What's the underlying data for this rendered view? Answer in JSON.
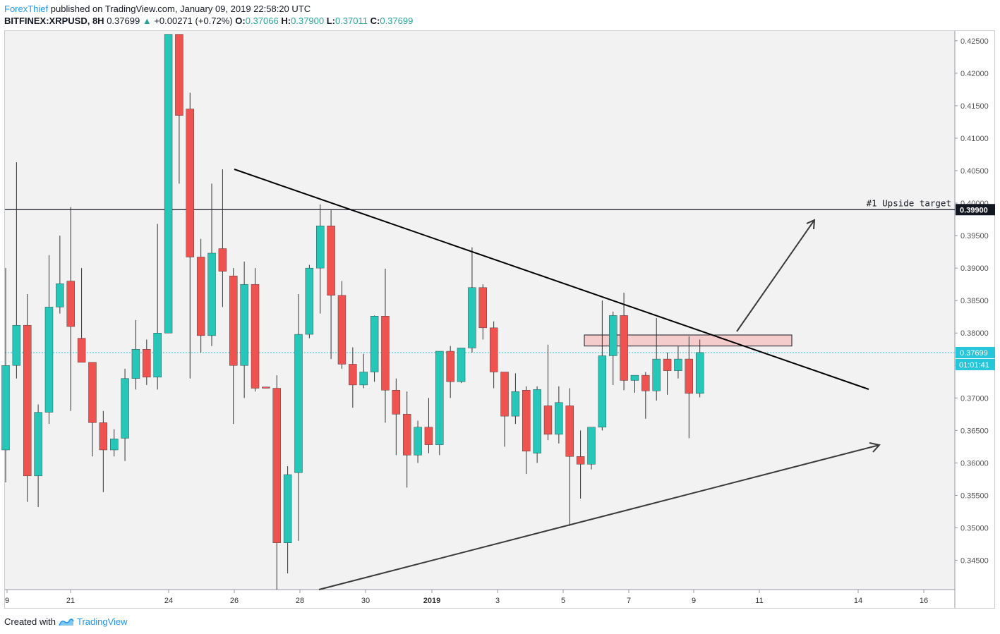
{
  "header": {
    "author": "ForexThief",
    "published": "published on TradingView.com, January 09, 2019 22:58:20 UTC",
    "symbol": "BITFINEX:XRPUSD, 8H",
    "last": "0.37699",
    "change": "+0.00271 (+0.72%)",
    "open_label": "O:",
    "open": "0.37066",
    "high_label": "H:",
    "high": "0.37900",
    "low_label": "L:",
    "low": "0.37011",
    "close_label": "C:",
    "close": "0.37699"
  },
  "footer": {
    "created_with": "Created with",
    "brand": "TradingView"
  },
  "colors": {
    "up": "#26c6b9",
    "down": "#ef5350",
    "grid_bg": "#f2f2f2",
    "accent": "#2196f3"
  },
  "chart_data": {
    "type": "candlestick",
    "timeframe": "8H",
    "ylim": [
      0.3405,
      0.4265
    ],
    "y_ticks": [
      "0.42500",
      "0.42000",
      "0.41500",
      "0.41000",
      "0.40500",
      "0.40000",
      "0.39500",
      "0.39000",
      "0.38500",
      "0.38000",
      "0.37500",
      "0.37000",
      "0.36500",
      "0.36000",
      "0.35500",
      "0.35000",
      "0.34500"
    ],
    "x_ticks": [
      "9",
      "21",
      "24",
      "26",
      "28",
      "30",
      "2019",
      "3",
      "5",
      "7",
      "9",
      "11",
      "14",
      "16"
    ],
    "candles": [
      {
        "o": 0.362,
        "h": 0.39,
        "l": 0.357,
        "c": 0.375
      },
      {
        "o": 0.375,
        "h": 0.4063,
        "l": 0.373,
        "c": 0.3812
      },
      {
        "o": 0.3812,
        "h": 0.386,
        "l": 0.354,
        "c": 0.358
      },
      {
        "o": 0.358,
        "h": 0.369,
        "l": 0.3532,
        "c": 0.3678
      },
      {
        "o": 0.3678,
        "h": 0.392,
        "l": 0.366,
        "c": 0.384
      },
      {
        "o": 0.384,
        "h": 0.395,
        "l": 0.383,
        "c": 0.3876
      },
      {
        "o": 0.388,
        "h": 0.3994,
        "l": 0.368,
        "c": 0.381
      },
      {
        "o": 0.3792,
        "h": 0.39,
        "l": 0.3755,
        "c": 0.3755
      },
      {
        "o": 0.3755,
        "h": 0.375,
        "l": 0.361,
        "c": 0.3662
      },
      {
        "o": 0.3662,
        "h": 0.368,
        "l": 0.3555,
        "c": 0.362
      },
      {
        "o": 0.362,
        "h": 0.3652,
        "l": 0.361,
        "c": 0.3637
      },
      {
        "o": 0.3638,
        "h": 0.3745,
        "l": 0.3603,
        "c": 0.373
      },
      {
        "o": 0.373,
        "h": 0.382,
        "l": 0.3713,
        "c": 0.3775
      },
      {
        "o": 0.3775,
        "h": 0.379,
        "l": 0.372,
        "c": 0.3732
      },
      {
        "o": 0.3732,
        "h": 0.3968,
        "l": 0.3713,
        "c": 0.38
      },
      {
        "o": 0.38,
        "h": 0.426,
        "l": 0.38,
        "c": 0.426
      },
      {
        "o": 0.426,
        "h": 0.426,
        "l": 0.403,
        "c": 0.4135
      },
      {
        "o": 0.4145,
        "h": 0.417,
        "l": 0.373,
        "c": 0.3917
      },
      {
        "o": 0.3917,
        "h": 0.3945,
        "l": 0.377,
        "c": 0.3796
      },
      {
        "o": 0.3796,
        "h": 0.403,
        "l": 0.378,
        "c": 0.3923
      },
      {
        "o": 0.393,
        "h": 0.4052,
        "l": 0.384,
        "c": 0.3895
      },
      {
        "o": 0.3888,
        "h": 0.39,
        "l": 0.366,
        "c": 0.375
      },
      {
        "o": 0.375,
        "h": 0.391,
        "l": 0.37,
        "c": 0.3875
      },
      {
        "o": 0.3875,
        "h": 0.39,
        "l": 0.371,
        "c": 0.3715
      },
      {
        "o": 0.3717,
        "h": 0.3717,
        "l": 0.3715,
        "c": 0.3715
      },
      {
        "o": 0.3715,
        "h": 0.3735,
        "l": 0.3405,
        "c": 0.3477
      },
      {
        "o": 0.3477,
        "h": 0.3595,
        "l": 0.343,
        "c": 0.3582
      },
      {
        "o": 0.3585,
        "h": 0.386,
        "l": 0.348,
        "c": 0.3798
      },
      {
        "o": 0.3798,
        "h": 0.3905,
        "l": 0.3792,
        "c": 0.39
      },
      {
        "o": 0.39,
        "h": 0.3998,
        "l": 0.383,
        "c": 0.3965
      },
      {
        "o": 0.3965,
        "h": 0.399,
        "l": 0.376,
        "c": 0.3858
      },
      {
        "o": 0.3858,
        "h": 0.388,
        "l": 0.3745,
        "c": 0.3752
      },
      {
        "o": 0.3752,
        "h": 0.3778,
        "l": 0.3685,
        "c": 0.372
      },
      {
        "o": 0.372,
        "h": 0.3768,
        "l": 0.3715,
        "c": 0.374
      },
      {
        "o": 0.374,
        "h": 0.3827,
        "l": 0.3725,
        "c": 0.3826
      },
      {
        "o": 0.3826,
        "h": 0.3899,
        "l": 0.3662,
        "c": 0.3712
      },
      {
        "o": 0.3712,
        "h": 0.373,
        "l": 0.3612,
        "c": 0.3675
      },
      {
        "o": 0.3675,
        "h": 0.371,
        "l": 0.3562,
        "c": 0.3612
      },
      {
        "o": 0.3612,
        "h": 0.3665,
        "l": 0.36,
        "c": 0.3655
      },
      {
        "o": 0.3655,
        "h": 0.37,
        "l": 0.3615,
        "c": 0.3628
      },
      {
        "o": 0.3628,
        "h": 0.3772,
        "l": 0.3612,
        "c": 0.3772
      },
      {
        "o": 0.3772,
        "h": 0.378,
        "l": 0.37,
        "c": 0.3725
      },
      {
        "o": 0.3725,
        "h": 0.3777,
        "l": 0.3723,
        "c": 0.3777
      },
      {
        "o": 0.3777,
        "h": 0.3932,
        "l": 0.377,
        "c": 0.387
      },
      {
        "o": 0.387,
        "h": 0.3875,
        "l": 0.379,
        "c": 0.3808
      },
      {
        "o": 0.3808,
        "h": 0.3818,
        "l": 0.3715,
        "c": 0.374
      },
      {
        "o": 0.374,
        "h": 0.374,
        "l": 0.3625,
        "c": 0.3672
      },
      {
        "o": 0.3672,
        "h": 0.3738,
        "l": 0.366,
        "c": 0.371
      },
      {
        "o": 0.3712,
        "h": 0.3718,
        "l": 0.3583,
        "c": 0.3618
      },
      {
        "o": 0.3615,
        "h": 0.3718,
        "l": 0.36,
        "c": 0.3713
      },
      {
        "o": 0.3688,
        "h": 0.3782,
        "l": 0.3635,
        "c": 0.3644
      },
      {
        "o": 0.3644,
        "h": 0.3718,
        "l": 0.363,
        "c": 0.3693
      },
      {
        "o": 0.3688,
        "h": 0.3715,
        "l": 0.3503,
        "c": 0.361
      },
      {
        "o": 0.361,
        "h": 0.365,
        "l": 0.3545,
        "c": 0.3598
      },
      {
        "o": 0.3598,
        "h": 0.3655,
        "l": 0.359,
        "c": 0.3655
      },
      {
        "o": 0.3655,
        "h": 0.385,
        "l": 0.365,
        "c": 0.3765
      },
      {
        "o": 0.3765,
        "h": 0.3833,
        "l": 0.372,
        "c": 0.3827
      },
      {
        "o": 0.3827,
        "h": 0.3862,
        "l": 0.3712,
        "c": 0.3727
      },
      {
        "o": 0.3727,
        "h": 0.3732,
        "l": 0.3708,
        "c": 0.3735
      },
      {
        "o": 0.3735,
        "h": 0.374,
        "l": 0.3668,
        "c": 0.3711
      },
      {
        "o": 0.3711,
        "h": 0.3823,
        "l": 0.3696,
        "c": 0.376
      },
      {
        "o": 0.376,
        "h": 0.377,
        "l": 0.3705,
        "c": 0.3742
      },
      {
        "o": 0.3742,
        "h": 0.378,
        "l": 0.373,
        "c": 0.376
      },
      {
        "o": 0.376,
        "h": 0.3795,
        "l": 0.3638,
        "c": 0.3707
      },
      {
        "o": 0.3707,
        "h": 0.379,
        "l": 0.3701,
        "c": 0.377
      }
    ],
    "annotations": {
      "target_label": "#1 Upside target",
      "target_value": "0.39900",
      "current_price": "0.37699",
      "countdown": "01:01:41",
      "resistance_zone": [
        0.378,
        0.3797
      ]
    }
  }
}
